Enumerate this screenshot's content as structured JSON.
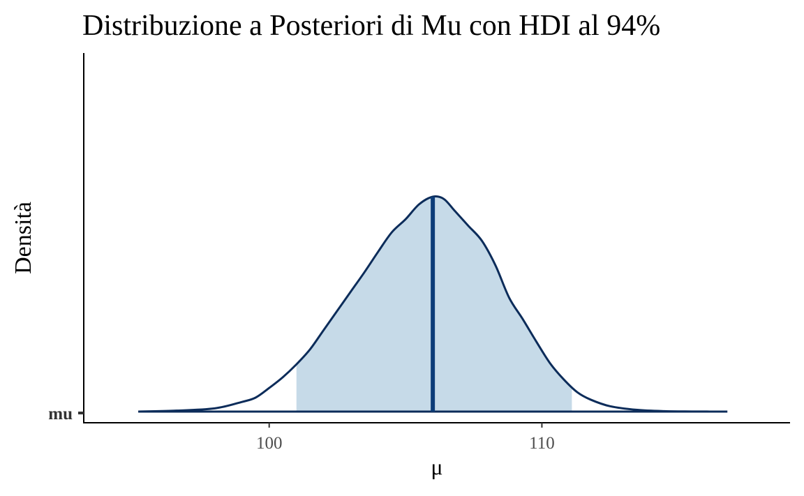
{
  "chart_data": {
    "type": "area",
    "title": "Distribuzione a Posteriori di Mu con HDI al 94%",
    "xlabel": "μ",
    "ylabel": "Densità",
    "y_category_labels": [
      "mu"
    ],
    "x_ticks": [
      100,
      110
    ],
    "xlim": [
      93.2,
      119.1
    ],
    "hdi_prob": 0.94,
    "hdi_interval": [
      101.0,
      111.1
    ],
    "point_estimate": 106.0,
    "density": {
      "x": [
        95.2,
        96.5,
        98.0,
        99.0,
        99.5,
        100.0,
        100.5,
        101.0,
        101.5,
        102.0,
        102.5,
        103.0,
        103.5,
        104.0,
        104.5,
        105.0,
        105.5,
        106.0,
        106.4,
        106.8,
        107.3,
        107.8,
        108.3,
        108.8,
        109.3,
        109.8,
        110.3,
        110.8,
        111.3,
        111.8,
        112.5,
        113.5,
        114.5,
        115.5,
        116.8
      ],
      "y": [
        0.0,
        0.004,
        0.015,
        0.045,
        0.065,
        0.11,
        0.16,
        0.22,
        0.29,
        0.38,
        0.47,
        0.56,
        0.65,
        0.745,
        0.835,
        0.895,
        0.965,
        1.0,
        0.99,
        0.935,
        0.865,
        0.795,
        0.68,
        0.53,
        0.43,
        0.325,
        0.225,
        0.15,
        0.09,
        0.055,
        0.025,
        0.008,
        0.002,
        0.0005,
        0.0
      ]
    },
    "colors": {
      "outline": "#0c2c5a",
      "hdi_fill": "#c6dae8",
      "point_line": "#0c3c78",
      "axis": "#000000"
    },
    "grid": false,
    "legend": "none"
  }
}
